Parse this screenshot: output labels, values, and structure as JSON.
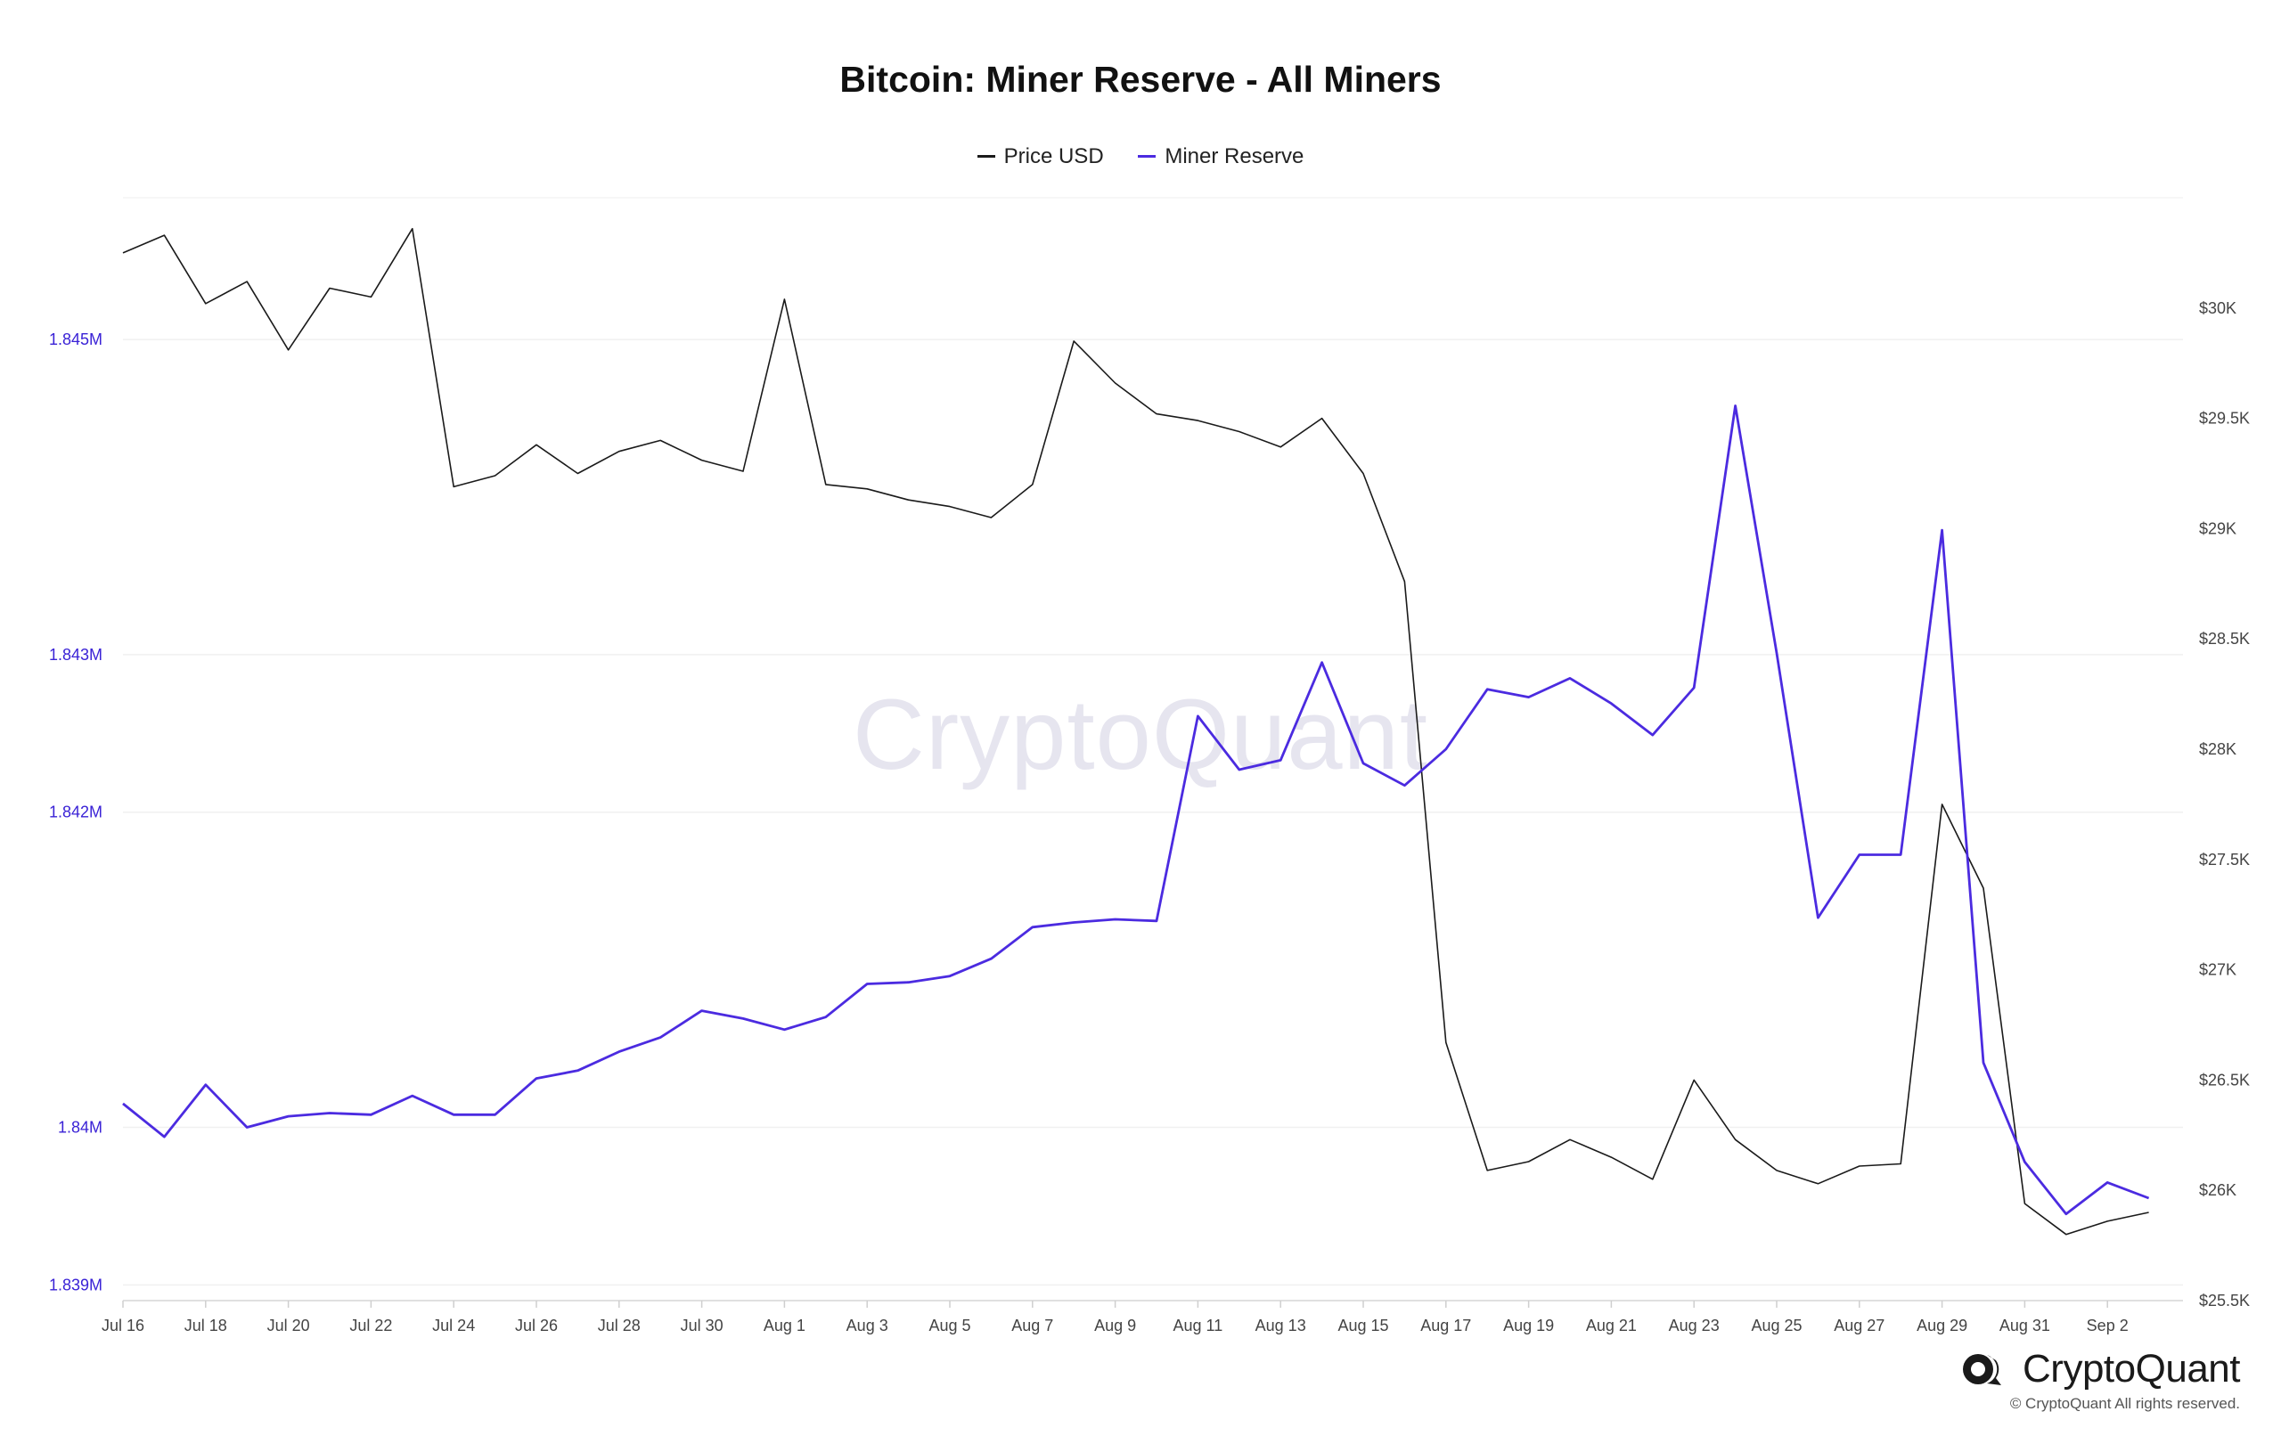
{
  "chart_data": {
    "type": "line",
    "title": "Bitcoin: Miner Reserve - All Miners",
    "x": [
      "Jul 16",
      "Jul 17",
      "Jul 18",
      "Jul 19",
      "Jul 20",
      "Jul 21",
      "Jul 22",
      "Jul 23",
      "Jul 24",
      "Jul 25",
      "Jul 26",
      "Jul 27",
      "Jul 28",
      "Jul 29",
      "Jul 30",
      "Jul 31",
      "Aug 1",
      "Aug 2",
      "Aug 3",
      "Aug 4",
      "Aug 5",
      "Aug 6",
      "Aug 7",
      "Aug 8",
      "Aug 9",
      "Aug 10",
      "Aug 11",
      "Aug 12",
      "Aug 13",
      "Aug 14",
      "Aug 15",
      "Aug 16",
      "Aug 17",
      "Aug 18",
      "Aug 19",
      "Aug 20",
      "Aug 21",
      "Aug 22",
      "Aug 23",
      "Aug 24",
      "Aug 25",
      "Aug 26",
      "Aug 27",
      "Aug 28",
      "Aug 29",
      "Aug 30",
      "Aug 31",
      "Sep 1",
      "Sep 2",
      "Sep 3"
    ],
    "x_tick_labels": [
      "Jul 16",
      "Jul 18",
      "Jul 20",
      "Jul 22",
      "Jul 24",
      "Jul 26",
      "Jul 28",
      "Jul 30",
      "Aug 1",
      "Aug 3",
      "Aug 5",
      "Aug 7",
      "Aug 9",
      "Aug 11",
      "Aug 13",
      "Aug 15",
      "Aug 17",
      "Aug 19",
      "Aug 21",
      "Aug 23",
      "Aug 25",
      "Aug 27",
      "Aug 29",
      "Aug 31",
      "Sep 2"
    ],
    "series": [
      {
        "name": "Price USD",
        "color": "#1a1a1a",
        "axis": "right",
        "values": [
          30250,
          30330,
          30020,
          30120,
          29810,
          30090,
          30050,
          30360,
          29190,
          29240,
          29380,
          29250,
          29350,
          29400,
          29310,
          29260,
          30040,
          29200,
          29180,
          29130,
          29100,
          29050,
          29200,
          29850,
          29660,
          29520,
          29490,
          29440,
          29370,
          29500,
          29250,
          28760,
          26670,
          26090,
          26130,
          26230,
          26150,
          26050,
          26500,
          26230,
          26090,
          26030,
          26110,
          26120,
          27750,
          27370,
          25940,
          25800,
          25860,
          25900
        ],
        "ylim": [
          25500,
          30500
        ]
      },
      {
        "name": "Miner Reserve",
        "color": "#4b2be0",
        "axis": "left",
        "values": [
          1840150,
          1839940,
          1840270,
          1840000,
          1840070,
          1840090,
          1840080,
          1840200,
          1840080,
          1840080,
          1840310,
          1840360,
          1840480,
          1840570,
          1840740,
          1840690,
          1840620,
          1840700,
          1840910,
          1840920,
          1840960,
          1841070,
          1841270,
          1841300,
          1841320,
          1841310,
          1842610,
          1842270,
          1842330,
          1842950,
          1842310,
          1842170,
          1842400,
          1842780,
          1842730,
          1842850,
          1842690,
          1842490,
          1842790,
          1844580,
          1843010,
          1841330,
          1841730,
          1841730,
          1843790,
          1840410,
          1839780,
          1839450,
          1839650,
          1839550
        ],
        "ylim": [
          1838900,
          1845900
        ]
      }
    ],
    "left_axis_ticks": [
      "1.839M",
      "1.84M",
      "1.842M",
      "1.843M",
      "1.845M"
    ],
    "right_axis_ticks": [
      "$25.5K",
      "$26K",
      "$26.5K",
      "$27K",
      "$27.5K",
      "$28K",
      "$28.5K",
      "$29K",
      "$29.5K",
      "$30K"
    ],
    "legend": {
      "position": "top-center"
    },
    "grid": true
  },
  "watermark_text": "CryptoQuant",
  "brand": {
    "name": "CryptoQuant",
    "icon": "cryptoquant-logo-icon"
  },
  "copyright": "© CryptoQuant All rights reserved.",
  "colors": {
    "miner_reserve": "#4b2be0",
    "price": "#1a1a1a",
    "axis_left_text": "#3a22d6",
    "grid": "#f0f0f0"
  }
}
